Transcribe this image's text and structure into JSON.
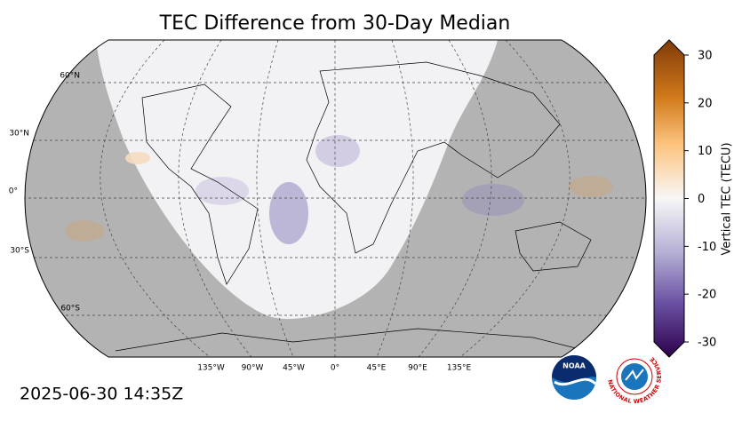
{
  "title": "TEC Difference from 30-Day Median",
  "map": {
    "lat_labels": [
      "60°N",
      "30°N",
      "0°",
      "30°S",
      "60°S"
    ],
    "lon_labels": [
      "135°W",
      "90°W",
      "45°W",
      "0°",
      "45°E",
      "90°E",
      "135°E"
    ]
  },
  "colorbar": {
    "label": "Vertical TEC (TECU)",
    "lim": [
      -30,
      30
    ],
    "ticks": [
      30,
      20,
      10,
      0,
      -10,
      -20,
      -30
    ]
  },
  "timestamp": "2025-06-30 14:35Z",
  "logos": {
    "noaa": "NOAA",
    "nws": "NATIONAL WEATHER SERVICE"
  }
}
